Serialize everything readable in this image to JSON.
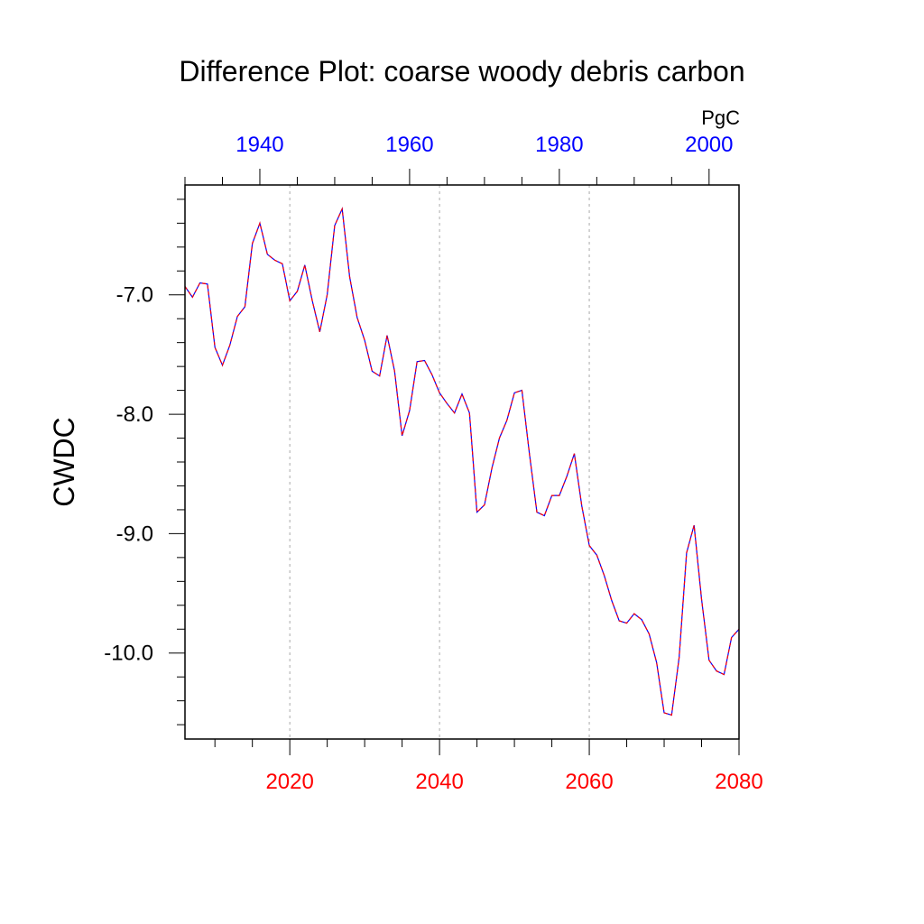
{
  "chart_data": {
    "type": "line",
    "title": "Difference Plot: coarse woody debris carbon",
    "units": "PgC",
    "ylabel": "CWDC",
    "ylim": [
      -10.72,
      -6.08
    ],
    "yticks": [
      -7.0,
      -8.0,
      -9.0,
      -10.0
    ],
    "ytick_labels": [
      "-7.0",
      "-8.0",
      "-9.0",
      "-10.0"
    ],
    "x_bottom": {
      "range": [
        2006,
        2080
      ],
      "ticks": [
        2020,
        2040,
        2060,
        2080
      ],
      "tick_labels": [
        "2020",
        "2040",
        "2060",
        "2080"
      ],
      "color": "#ff0000",
      "gridlines": true
    },
    "x_top": {
      "range": [
        1930,
        2004
      ],
      "ticks": [
        1940,
        1960,
        1980,
        2000
      ],
      "tick_labels": [
        "1940",
        "1960",
        "1980",
        "2000"
      ],
      "color": "#0000ff"
    },
    "series": [
      {
        "color": "#0000ff",
        "dash": "solid",
        "x": [
          2006,
          2007,
          2008,
          2009,
          2010,
          2011,
          2012,
          2013,
          2014,
          2015,
          2016,
          2017,
          2018,
          2019,
          2020,
          2021,
          2022,
          2023,
          2024,
          2025,
          2026,
          2027,
          2028,
          2029,
          2030,
          2031,
          2032,
          2033,
          2034,
          2035,
          2036,
          2037,
          2038,
          2039,
          2040,
          2041,
          2042,
          2043,
          2044,
          2045,
          2046,
          2047,
          2048,
          2049,
          2050,
          2051,
          2052,
          2053,
          2054,
          2055,
          2056,
          2057,
          2058,
          2059,
          2060,
          2061,
          2062,
          2063,
          2064,
          2065,
          2066,
          2067,
          2068,
          2069,
          2070,
          2071,
          2072,
          2073,
          2074,
          2075,
          2076,
          2077,
          2078,
          2079,
          2080
        ],
        "values": [
          -6.93,
          -7.02,
          -6.9,
          -6.91,
          -7.44,
          -7.59,
          -7.42,
          -7.18,
          -7.1,
          -6.57,
          -6.4,
          -6.66,
          -6.71,
          -6.74,
          -7.05,
          -6.97,
          -6.75,
          -7.05,
          -7.31,
          -7.0,
          -6.42,
          -6.28,
          -6.85,
          -7.19,
          -7.38,
          -7.64,
          -7.68,
          -7.34,
          -7.64,
          -8.18,
          -7.97,
          -7.56,
          -7.55,
          -7.67,
          -7.82,
          -7.91,
          -7.99,
          -7.83,
          -7.99,
          -8.82,
          -8.76,
          -8.45,
          -8.2,
          -8.05,
          -7.82,
          -7.8,
          -8.33,
          -8.82,
          -8.85,
          -8.68,
          -8.68,
          -8.52,
          -8.33,
          -8.77,
          -9.1,
          -9.18,
          -9.35,
          -9.56,
          -9.73,
          -9.75,
          -9.67,
          -9.72,
          -9.84,
          -10.08,
          -10.5,
          -10.52,
          -10.04,
          -9.16,
          -8.93,
          -9.55,
          -10.06,
          -10.15,
          -10.18,
          -9.87,
          -9.8
        ]
      },
      {
        "color": "#ff0000",
        "dash": "dashed",
        "x": [
          2006,
          2007,
          2008,
          2009,
          2010,
          2011,
          2012,
          2013,
          2014,
          2015,
          2016,
          2017,
          2018,
          2019,
          2020,
          2021,
          2022,
          2023,
          2024,
          2025,
          2026,
          2027,
          2028,
          2029,
          2030,
          2031,
          2032,
          2033,
          2034,
          2035,
          2036,
          2037,
          2038,
          2039,
          2040,
          2041,
          2042,
          2043,
          2044,
          2045,
          2046,
          2047,
          2048,
          2049,
          2050,
          2051,
          2052,
          2053,
          2054,
          2055,
          2056,
          2057,
          2058,
          2059,
          2060,
          2061,
          2062,
          2063,
          2064,
          2065,
          2066,
          2067,
          2068,
          2069,
          2070,
          2071,
          2072,
          2073,
          2074,
          2075,
          2076,
          2077,
          2078,
          2079,
          2080
        ],
        "values": [
          -6.93,
          -7.02,
          -6.9,
          -6.91,
          -7.44,
          -7.59,
          -7.42,
          -7.18,
          -7.1,
          -6.57,
          -6.4,
          -6.66,
          -6.71,
          -6.74,
          -7.05,
          -6.97,
          -6.75,
          -7.05,
          -7.31,
          -7.0,
          -6.42,
          -6.28,
          -6.85,
          -7.19,
          -7.38,
          -7.64,
          -7.68,
          -7.34,
          -7.64,
          -8.18,
          -7.97,
          -7.56,
          -7.55,
          -7.67,
          -7.82,
          -7.91,
          -7.99,
          -7.83,
          -7.99,
          -8.82,
          -8.76,
          -8.45,
          -8.2,
          -8.05,
          -7.82,
          -7.8,
          -8.33,
          -8.82,
          -8.85,
          -8.68,
          -8.68,
          -8.52,
          -8.33,
          -8.77,
          -9.1,
          -9.18,
          -9.35,
          -9.56,
          -9.73,
          -9.75,
          -9.67,
          -9.72,
          -9.84,
          -10.08,
          -10.5,
          -10.52,
          -10.04,
          -9.16,
          -8.93,
          -9.55,
          -10.06,
          -10.15,
          -10.18,
          -9.87,
          -9.8
        ]
      }
    ],
    "grid": true,
    "legend": "none"
  }
}
